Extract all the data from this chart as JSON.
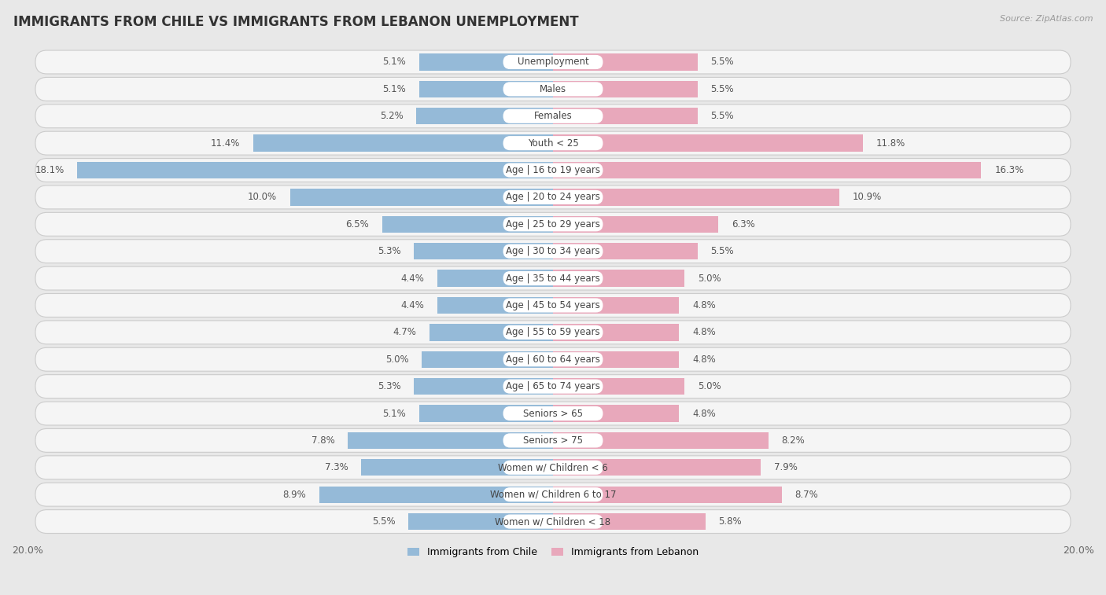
{
  "title": "IMMIGRANTS FROM CHILE VS IMMIGRANTS FROM LEBANON UNEMPLOYMENT",
  "source": "Source: ZipAtlas.com",
  "categories": [
    "Unemployment",
    "Males",
    "Females",
    "Youth < 25",
    "Age | 16 to 19 years",
    "Age | 20 to 24 years",
    "Age | 25 to 29 years",
    "Age | 30 to 34 years",
    "Age | 35 to 44 years",
    "Age | 45 to 54 years",
    "Age | 55 to 59 years",
    "Age | 60 to 64 years",
    "Age | 65 to 74 years",
    "Seniors > 65",
    "Seniors > 75",
    "Women w/ Children < 6",
    "Women w/ Children 6 to 17",
    "Women w/ Children < 18"
  ],
  "chile_values": [
    5.1,
    5.1,
    5.2,
    11.4,
    18.1,
    10.0,
    6.5,
    5.3,
    4.4,
    4.4,
    4.7,
    5.0,
    5.3,
    5.1,
    7.8,
    7.3,
    8.9,
    5.5
  ],
  "lebanon_values": [
    5.5,
    5.5,
    5.5,
    11.8,
    16.3,
    10.9,
    6.3,
    5.5,
    5.0,
    4.8,
    4.8,
    4.8,
    5.0,
    4.8,
    8.2,
    7.9,
    8.7,
    5.8
  ],
  "chile_color": "#95bad8",
  "lebanon_color": "#e8a8bb",
  "axis_max": 20.0,
  "axis_label": "20.0%",
  "bg_color": "#e8e8e8",
  "row_bg_color": "#f5f5f5",
  "bar_bg_color": "#f5f5f5",
  "title_fontsize": 12,
  "label_fontsize": 8.5,
  "value_fontsize": 8.5,
  "legend_chile": "Immigrants from Chile",
  "legend_lebanon": "Immigrants from Lebanon"
}
